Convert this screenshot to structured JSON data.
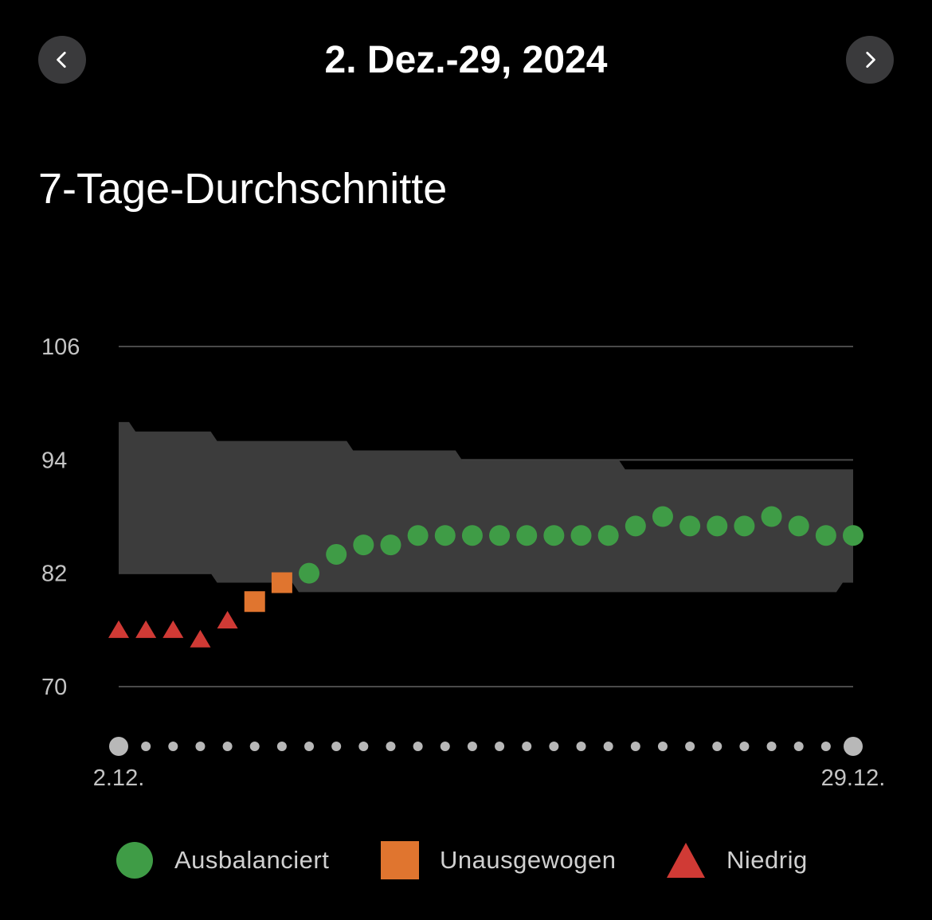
{
  "header": {
    "date_range": "2. Dez.-29, 2024",
    "prev_icon": "chevron-left-icon",
    "next_icon": "chevron-right-icon"
  },
  "section_title": "7-Tage-Durchschnitte",
  "chart_data": {
    "type": "scatter",
    "title": "7-Tage-Durchschnitte",
    "y_ticks": [
      "106",
      "94",
      "82",
      "70"
    ],
    "ylim": [
      70,
      106
    ],
    "x_start_label": "2.12.",
    "x_end_label": "29.12.",
    "days": 28,
    "values": [
      76,
      76,
      76,
      75,
      77,
      79,
      81,
      82,
      84,
      85,
      85,
      86,
      86,
      86,
      86,
      86,
      86,
      86,
      86,
      87,
      88,
      87,
      87,
      87,
      88,
      87,
      86,
      86
    ],
    "status": [
      "Niedrig",
      "Niedrig",
      "Niedrig",
      "Niedrig",
      "Niedrig",
      "Unausgewogen",
      "Unausgewogen",
      "Ausbalanciert",
      "Ausbalanciert",
      "Ausbalanciert",
      "Ausbalanciert",
      "Ausbalanciert",
      "Ausbalanciert",
      "Ausbalanciert",
      "Ausbalanciert",
      "Ausbalanciert",
      "Ausbalanciert",
      "Ausbalanciert",
      "Ausbalanciert",
      "Ausbalanciert",
      "Ausbalanciert",
      "Ausbalanciert",
      "Ausbalanciert",
      "Ausbalanciert",
      "Ausbalanciert",
      "Ausbalanciert",
      "Ausbalanciert",
      "Ausbalanciert"
    ],
    "band_upper": [
      98,
      97,
      97,
      97,
      96,
      96,
      96,
      96,
      96,
      95,
      95,
      95,
      95,
      94,
      94,
      94,
      94,
      94,
      94,
      93,
      93,
      93,
      93,
      93,
      93,
      93,
      93,
      93
    ],
    "band_lower": [
      82,
      82,
      82,
      82,
      81,
      81,
      81,
      80,
      80,
      80,
      80,
      80,
      80,
      80,
      80,
      80,
      80,
      80,
      80,
      80,
      80,
      80,
      80,
      80,
      80,
      80,
      80,
      81
    ],
    "grid": true,
    "legend_position": "bottom",
    "legend": [
      {
        "label": "Ausbalanciert",
        "shape": "circle",
        "color": "#3f9c46"
      },
      {
        "label": "Unausgewogen",
        "shape": "square",
        "color": "#e0752f"
      },
      {
        "label": "Niedrig",
        "shape": "triangle",
        "color": "#d03a35"
      }
    ],
    "colors": {
      "band": "#3c3c3c",
      "grid": "#4a4a4a",
      "tick_text": "#c4c4c4",
      "axis_dot": "#b8b8b8"
    }
  }
}
